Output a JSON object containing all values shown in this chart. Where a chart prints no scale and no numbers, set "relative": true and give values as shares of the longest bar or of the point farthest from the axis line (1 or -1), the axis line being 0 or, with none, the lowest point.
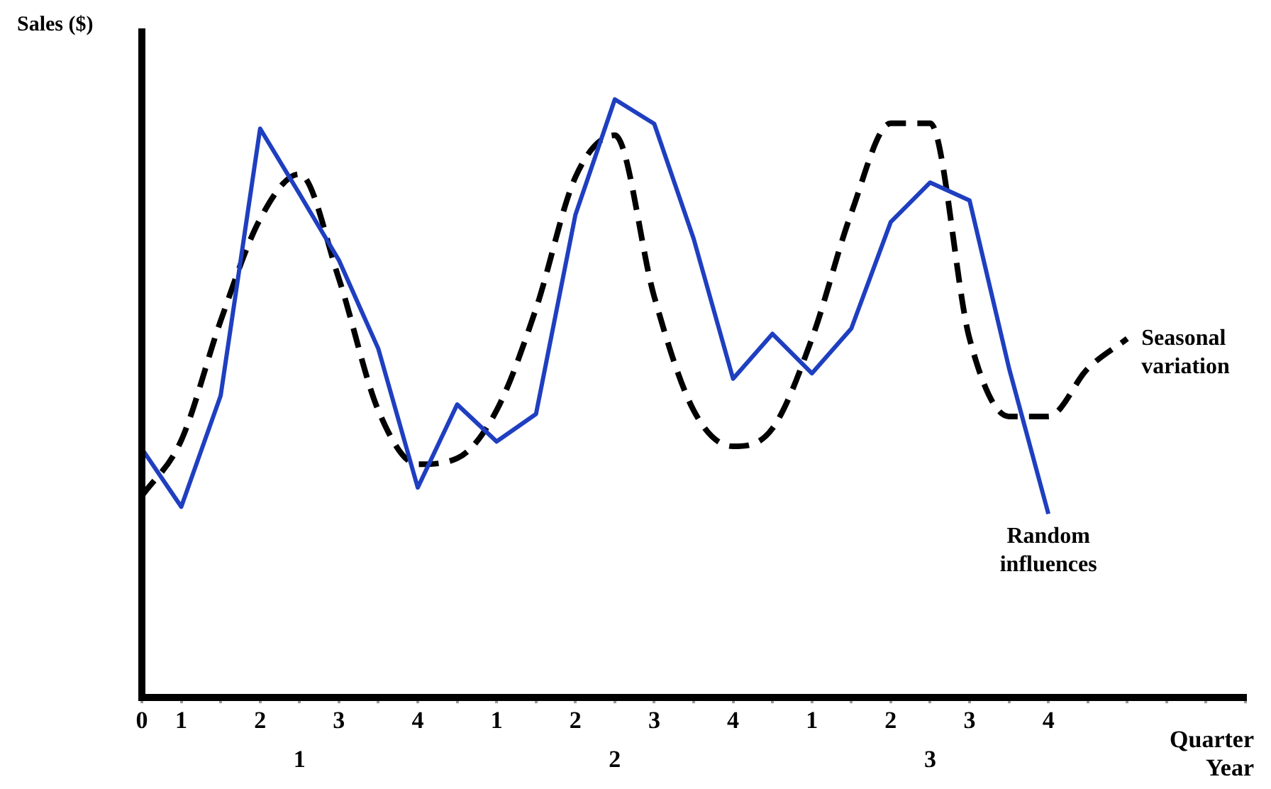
{
  "chart_data": {
    "type": "line",
    "relative": true,
    "ylabel": "Sales ($)",
    "xlabel": "Quarter",
    "x2label": "Year",
    "categories": [
      "0",
      "1",
      null,
      "2",
      null,
      "3",
      null,
      "4",
      null,
      "1",
      null,
      "2",
      null,
      "3",
      null,
      "4",
      null,
      "1",
      null,
      "2",
      null,
      "3",
      null,
      "4",
      null,
      null,
      null,
      null,
      null
    ],
    "annotations": [
      "1",
      "2",
      "3"
    ],
    "grid": false,
    "legend": false,
    "marker": "none",
    "series": [
      {
        "name": "Random influences",
        "color": "#1f3fc0",
        "line_style": "solid",
        "values": [
          0.416,
          0.319,
          0.505,
          0.951,
          0.842,
          0.731,
          0.583,
          0.351,
          0.49,
          0.428,
          0.474,
          0.807,
          1,
          0.959,
          0.767,
          0.533,
          0.608,
          0.542,
          0.617,
          0.795,
          0.861,
          0.831,
          0.551,
          0.307,
          null,
          null,
          null,
          null,
          null
        ]
      },
      {
        "name": "Seasonal variation",
        "color": "#000000",
        "line_style": "dashed",
        "values": [
          0.337,
          0.43,
          0.63,
          0.8,
          0.875,
          0.7,
          0.48,
          0.39,
          0.4,
          0.48,
          0.65,
          0.87,
          0.94,
          0.67,
          0.48,
          0.42,
          0.45,
          0.6,
          0.81,
          0.96,
          0.96,
          0.6,
          0.47,
          0.47,
          0.55,
          0.6,
          null,
          null,
          null
        ]
      }
    ]
  }
}
